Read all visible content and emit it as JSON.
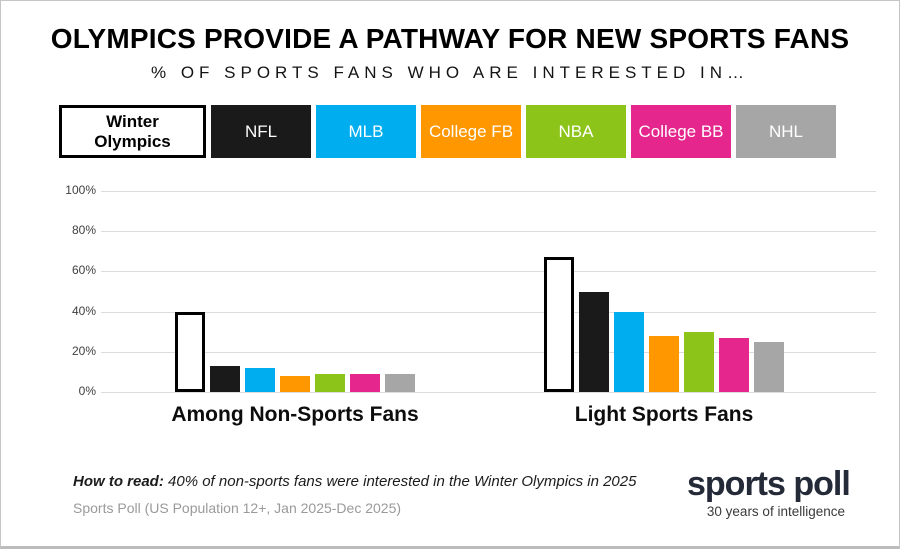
{
  "header": {
    "title": "OLYMPICS PROVIDE A PATHWAY FOR NEW SPORTS FANS",
    "subtitle": "% OF SPORTS FANS WHO ARE INTERESTED IN…"
  },
  "chart_data": {
    "type": "bar",
    "categories": [
      "Among Non-Sports Fans",
      "Light Sports Fans"
    ],
    "series": [
      {
        "name": "Winter Olympics",
        "values": [
          40,
          67
        ],
        "color": "#ffffff",
        "text_color": "#000000",
        "outline": "#000000"
      },
      {
        "name": "NFL",
        "values": [
          13,
          50
        ],
        "color": "#1a1a1a",
        "text_color": "#ffffff"
      },
      {
        "name": "MLB",
        "values": [
          12,
          40
        ],
        "color": "#00aeef",
        "text_color": "#ffffff"
      },
      {
        "name": "College FB",
        "values": [
          8,
          28
        ],
        "color": "#ff9800",
        "text_color": "#ffffff"
      },
      {
        "name": "NBA",
        "values": [
          9,
          30
        ],
        "color": "#8cc41a",
        "text_color": "#ffffff"
      },
      {
        "name": "College BB",
        "values": [
          9,
          27
        ],
        "color": "#e4268d",
        "text_color": "#ffffff"
      },
      {
        "name": "NHL",
        "values": [
          9,
          25
        ],
        "color": "#a6a6a6",
        "text_color": "#ffffff"
      }
    ],
    "ylim": [
      0,
      100
    ],
    "yticks": [
      "100%",
      "80%",
      "60%",
      "40%",
      "20%",
      "0%"
    ],
    "grid": true,
    "legend_position": "top",
    "gridline_color": "#dcdcdc"
  },
  "footer": {
    "how_to_read_label": "How to read:",
    "how_to_read_text": "40% of non-sports fans were interested in the Winter Olympics in 2025",
    "source": "Sports Poll (US Population 12+, Jan 2025-Dec 2025)",
    "logo_title": "sports poll",
    "logo_tagline": "30 years of intelligence"
  }
}
